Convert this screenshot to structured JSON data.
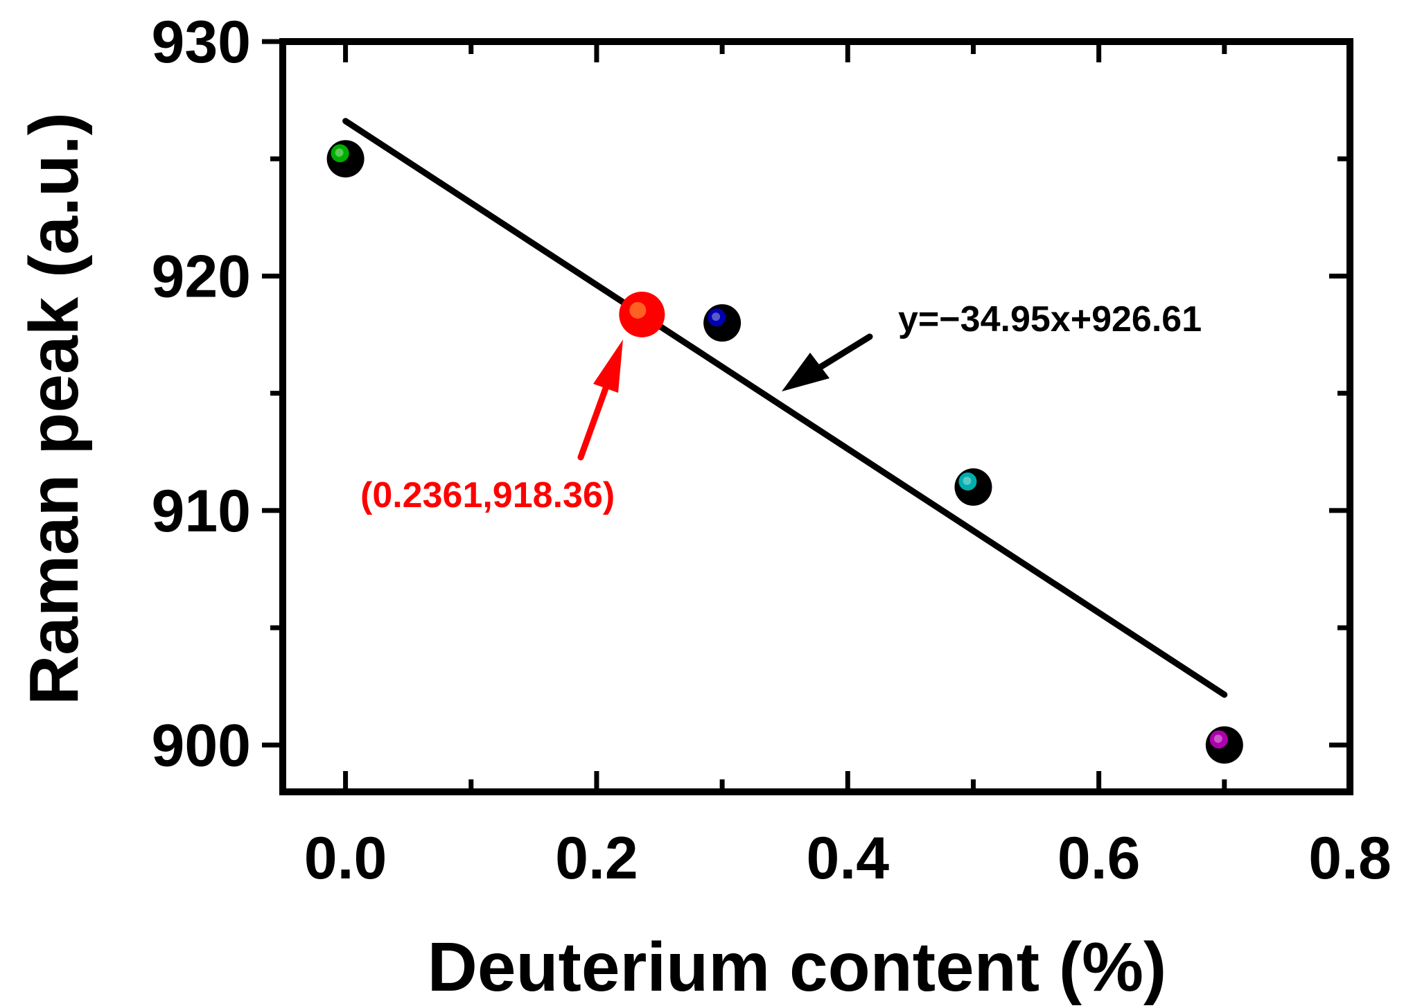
{
  "chart_data": {
    "type": "scatter",
    "xlabel": "Deuterium content (%)",
    "ylabel": "Raman peak (a.u.)",
    "xlim": [
      -0.05,
      0.8
    ],
    "ylim": [
      898,
      930
    ],
    "x_ticks": [
      "0.0",
      "0.2",
      "0.4",
      "0.6",
      "0.8"
    ],
    "y_ticks": [
      "900",
      "910",
      "920",
      "930"
    ],
    "x_tick_values": [
      0.0,
      0.2,
      0.4,
      0.6,
      0.8
    ],
    "y_tick_values": [
      900,
      910,
      920,
      930
    ],
    "grid": false,
    "points": [
      {
        "x": 0.0,
        "y": 925.0,
        "inner_color": "#00cc00"
      },
      {
        "x": 0.3,
        "y": 918.0,
        "inner_color": "#0000cc"
      },
      {
        "x": 0.5,
        "y": 911.0,
        "inner_color": "#00cccc"
      },
      {
        "x": 0.7,
        "y": 900.0,
        "inner_color": "#cc00cc"
      }
    ],
    "highlighted_point": {
      "x": 0.2361,
      "y": 918.36,
      "color": "#ff0000",
      "label": "(0.2361,918.36)"
    },
    "fit_line": {
      "slope": -34.95,
      "intercept": 926.61,
      "x_range": [
        0.0,
        0.7
      ],
      "label": "y=−34.95x+926.61",
      "color": "#000000"
    }
  }
}
